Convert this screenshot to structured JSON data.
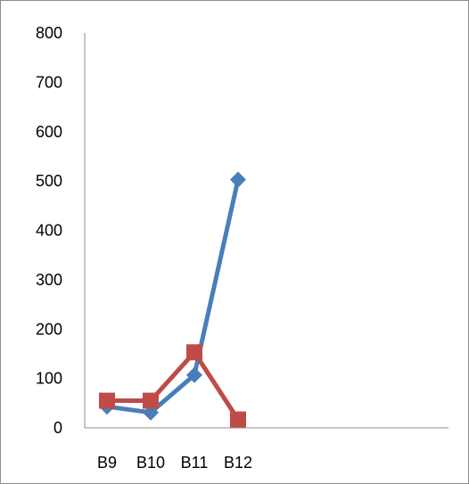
{
  "chart_data": {
    "type": "line",
    "categories": [
      "B9",
      "B10",
      "B11",
      "B12"
    ],
    "y_ticks": [
      "0",
      "100",
      "200",
      "300",
      "400",
      "500",
      "600",
      "700",
      "800"
    ],
    "ylim": [
      0,
      800
    ],
    "grid": false,
    "legend": "none",
    "series": [
      {
        "values": [
          43,
          31,
          107,
          503
        ],
        "color": "#4a7ebb",
        "marker": "diamond"
      },
      {
        "values": [
          55,
          55,
          153,
          17
        ],
        "color": "#be4b48",
        "marker": "square"
      }
    ]
  }
}
